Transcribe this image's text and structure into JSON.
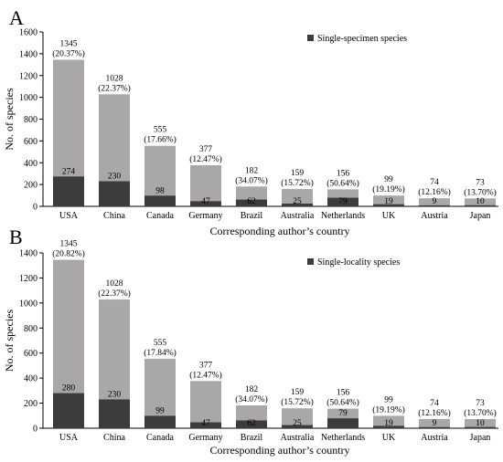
{
  "colors": {
    "total": "#a9a7a8",
    "highlight": "#3c3c3c",
    "axis": "#000000"
  },
  "chart_data": [
    {
      "type": "bar",
      "panel": "A",
      "categories": [
        "USA",
        "China",
        "Canada",
        "Germany",
        "Brazil",
        "Australia",
        "Netherlands",
        "UK",
        "Austria",
        "Japan"
      ],
      "series": [
        {
          "name": "",
          "values": [
            1345,
            1028,
            555,
            377,
            182,
            159,
            156,
            99,
            74,
            73
          ]
        },
        {
          "name": "Single-specimen species",
          "values": [
            274,
            230,
            98,
            47,
            62,
            25,
            79,
            19,
            9,
            10
          ]
        }
      ],
      "percent_labels": [
        "(20.37%)",
        "(22.37%)",
        "(17.66%)",
        "(12.47%)",
        "(34.07%)",
        "(15.72%)",
        "(50.64%)",
        "(19.19%)",
        "(12.16%)",
        "(13.70%)"
      ],
      "xlabel": "Corresponding author’s country",
      "ylabel": "No. of species",
      "ylim": [
        0,
        1600
      ],
      "yticks": [
        0,
        200,
        400,
        600,
        800,
        1000,
        1200,
        1400,
        1600
      ],
      "legend": "top-right",
      "grid": false
    },
    {
      "type": "bar",
      "panel": "B",
      "categories": [
        "USA",
        "China",
        "Canada",
        "Germany",
        "Brazil",
        "Australia",
        "Netherlands",
        "UK",
        "Austria",
        "Japan"
      ],
      "series": [
        {
          "name": "",
          "values": [
            1345,
            1028,
            555,
            377,
            182,
            159,
            156,
            99,
            74,
            73
          ]
        },
        {
          "name": "Single-locality species",
          "values": [
            280,
            230,
            99,
            47,
            62,
            25,
            79,
            19,
            9,
            10
          ]
        }
      ],
      "percent_labels": [
        "(20.82%)",
        "(22.37%)",
        "(17.84%)",
        "(12.47%)",
        "(34.07%)",
        "(15.72%)",
        "(50.64%)",
        "(19.19%)",
        "(12.16%)",
        "(13.70%)"
      ],
      "xlabel": "Corresponding author’s country",
      "ylabel": "No. of species",
      "ylim": [
        0,
        1400
      ],
      "yticks": [
        0,
        200,
        400,
        600,
        800,
        1000,
        1200,
        1400
      ],
      "legend": "top-right",
      "grid": false
    }
  ]
}
